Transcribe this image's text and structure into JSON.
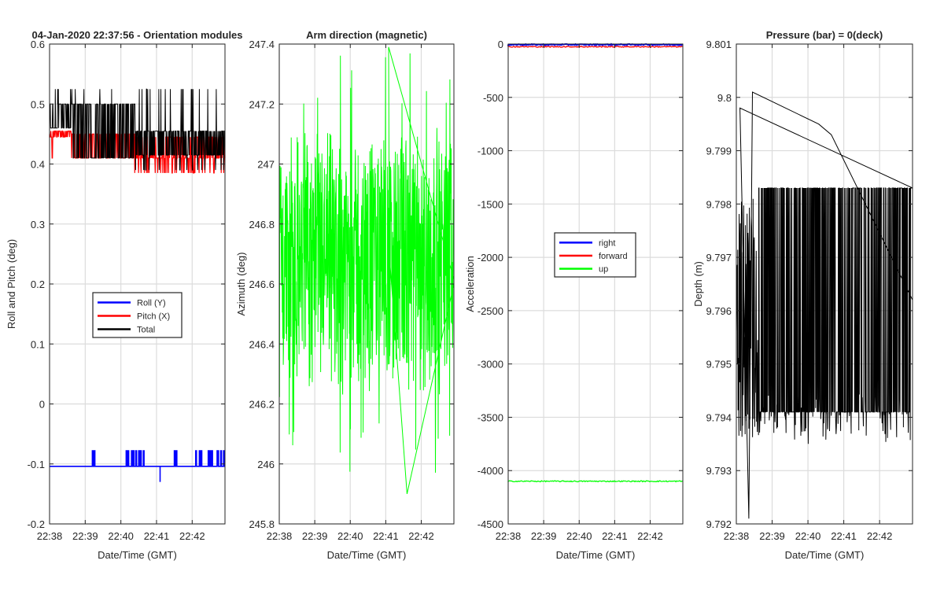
{
  "figure_title": "04-Jan-2020 22:37:56 - Orientation modules",
  "colors": {
    "blue": "#0000ff",
    "red": "#ff0000",
    "green": "#00ff00",
    "black": "#000000",
    "grid": "#dcdcdc",
    "axis": "#262626"
  },
  "chart_data": [
    {
      "type": "line",
      "title": "04-Jan-2020 22:37:56 - Orientation modules",
      "xlabel": "Date/Time (GMT)",
      "ylabel": "Roll and Pitch (deg)",
      "xlim": [
        "22:38",
        "22:42:55"
      ],
      "ylim": [
        -0.2,
        0.6
      ],
      "xticks": [
        "22:38",
        "22:39",
        "22:40",
        "22:41",
        "22:42"
      ],
      "yticks": [
        "-0.2",
        "-0.1",
        "0",
        "0.1",
        "0.2",
        "0.3",
        "0.4",
        "0.5",
        "0.6"
      ],
      "grid": true,
      "legend_position": "center-bottom",
      "series": [
        {
          "name": "Roll (Y)",
          "color": "blue",
          "baseline": -0.104,
          "spikes": [
            -0.078,
            -0.13
          ]
        },
        {
          "name": "Pitch (X)",
          "color": "red",
          "baseline_range": [
            0.41,
            0.45
          ],
          "spikes": [
            0.38,
            0.46
          ]
        },
        {
          "name": "Total",
          "color": "black",
          "baseline_range": [
            0.41,
            0.5
          ],
          "spikes": [
            0.39,
            0.525
          ]
        }
      ]
    },
    {
      "type": "line",
      "title": "Arm direction (magnetic)",
      "xlabel": "Date/Time (GMT)",
      "ylabel": "Azimuth (deg)",
      "xlim": [
        "22:38",
        "22:42:55"
      ],
      "ylim": [
        245.8,
        247.4
      ],
      "xticks": [
        "22:38",
        "22:39",
        "22:40",
        "22:41",
        "22:42"
      ],
      "yticks": [
        "245.8",
        "246",
        "246.2",
        "246.4",
        "246.6",
        "246.8",
        "247",
        "247.2",
        "247.4"
      ],
      "grid": true,
      "series": [
        {
          "name": "Azimuth",
          "color": "green",
          "mean": 246.67,
          "range": [
            245.9,
            247.39
          ]
        }
      ]
    },
    {
      "type": "line",
      "title": "",
      "xlabel": "Date/Time (GMT)",
      "ylabel": "Acceleration",
      "xlim": [
        "22:38",
        "22:42:55"
      ],
      "ylim": [
        -4500,
        0
      ],
      "xticks": [
        "22:38",
        "22:39",
        "22:40",
        "22:41",
        "22:42"
      ],
      "yticks": [
        "-4500",
        "-4000",
        "-3500",
        "-3000",
        "-2500",
        "-2000",
        "-1500",
        "-1000",
        "-500",
        "0"
      ],
      "grid": true,
      "legend_position": "center",
      "series": [
        {
          "name": "right",
          "color": "blue",
          "value": -5
        },
        {
          "name": "forward",
          "color": "red",
          "value": -25
        },
        {
          "name": "up",
          "color": "green",
          "value": -4100
        }
      ]
    },
    {
      "type": "line",
      "title": "Pressure (bar) = 0(deck)",
      "xlabel": "Date/Time (GMT)",
      "ylabel": "Depth (m)",
      "xlim": [
        "22:38",
        "22:42:55"
      ],
      "ylim": [
        9.792,
        9.801
      ],
      "xticks": [
        "22:38",
        "22:39",
        "22:40",
        "22:41",
        "22:42"
      ],
      "yticks": [
        "9.792",
        "9.793",
        "9.794",
        "9.795",
        "9.796",
        "9.797",
        "9.798",
        "9.799",
        "9.8",
        "9.801"
      ],
      "grid": true,
      "series": [
        {
          "name": "Depth",
          "color": "black",
          "levels": [
            9.7941,
            9.7983
          ],
          "range": [
            9.7921,
            9.8002
          ]
        }
      ]
    }
  ]
}
